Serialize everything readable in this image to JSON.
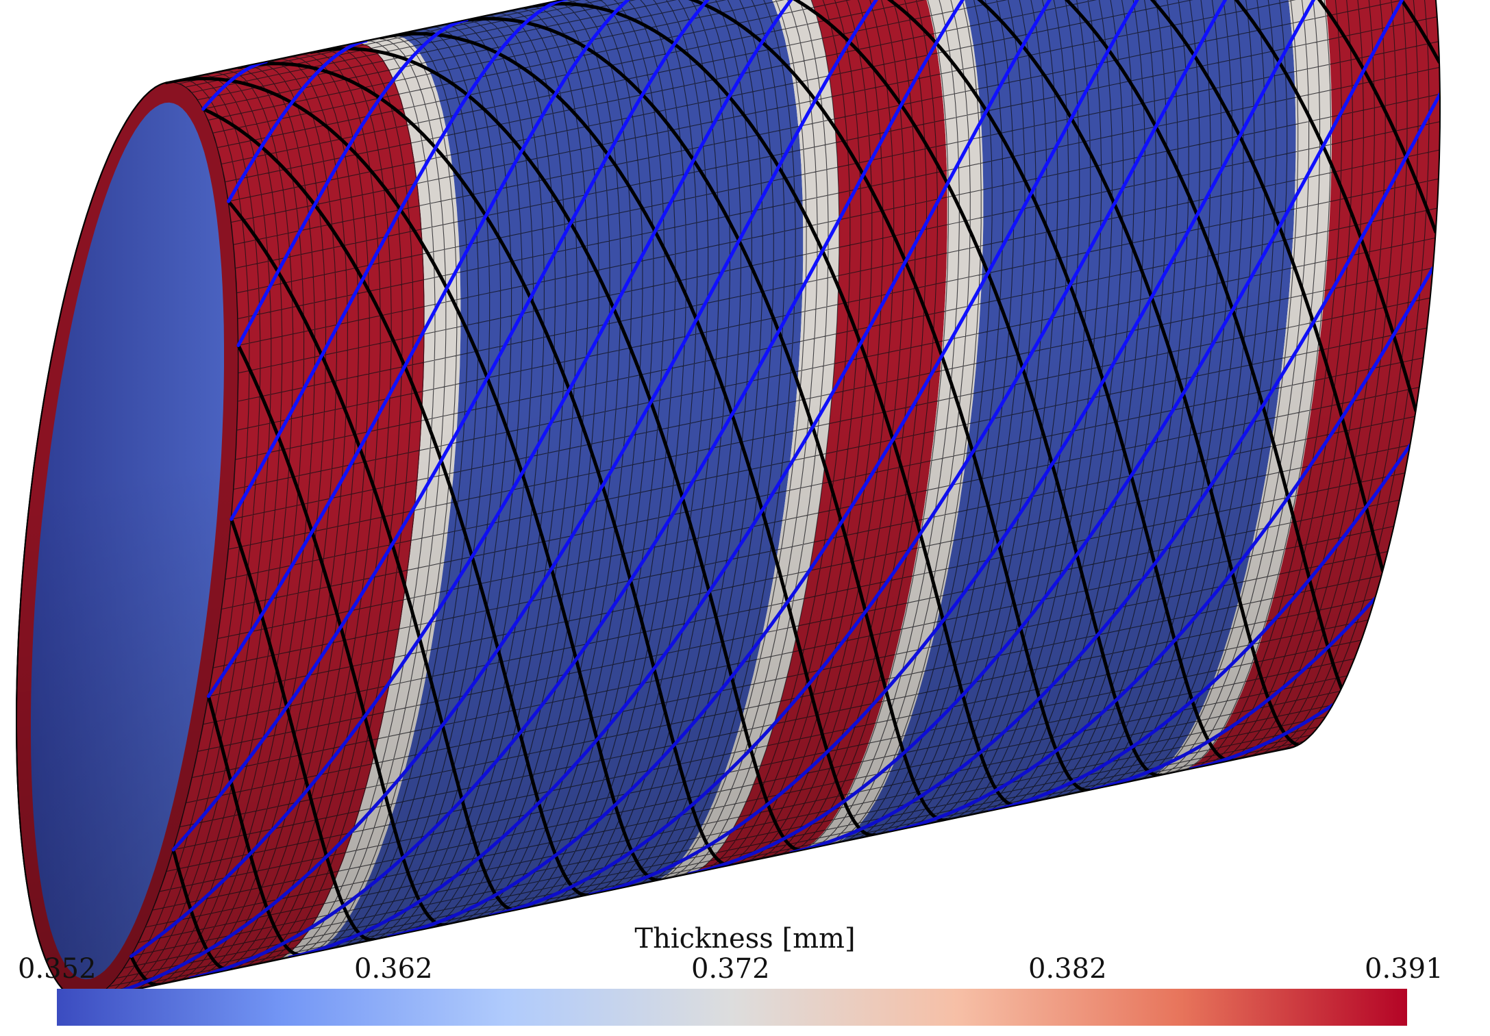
{
  "colorbar": {
    "title": "Thickness [mm]",
    "ticks": [
      "0.352",
      "0.362",
      "0.372",
      "0.382",
      "0.391"
    ],
    "colormap": [
      "#3b4cc0",
      "#7396f5",
      "#b0cbfc",
      "#dddddd",
      "#f6bfa6",
      "#e7745b",
      "#b40426"
    ]
  },
  "scene": {
    "colors": {
      "blue_band": "#3b4fa6",
      "red_band": "#a5182a",
      "fiber_blue": "#1010ff",
      "fiber_black": "#000000",
      "mesh": "#101015"
    }
  }
}
